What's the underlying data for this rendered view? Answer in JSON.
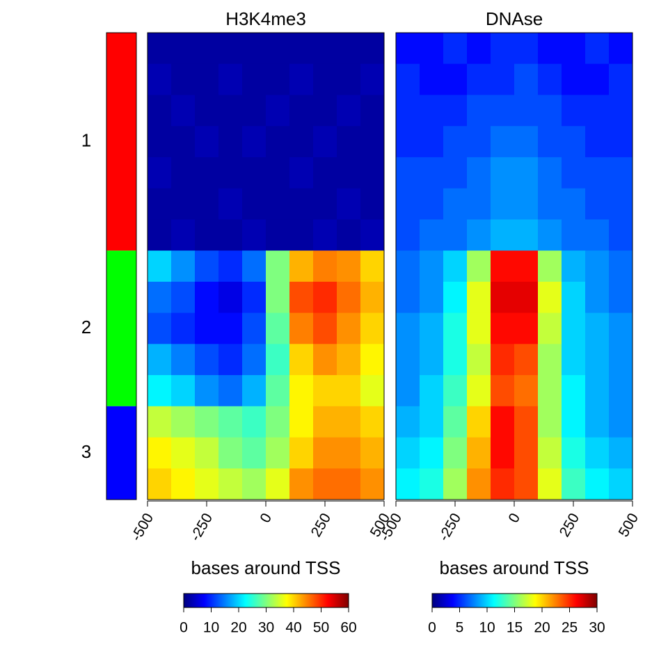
{
  "chart_data": {
    "type": "heatmap",
    "colormap": [
      "#00007f",
      "#0000ff",
      "#007fff",
      "#00ffff",
      "#7fff7f",
      "#ffff00",
      "#ff7f00",
      "#ff0000",
      "#7f0000"
    ],
    "clusters": [
      {
        "label": "1",
        "color": "#ff0000",
        "rows": 7
      },
      {
        "label": "2",
        "color": "#00ff00",
        "rows": 5
      },
      {
        "label": "3",
        "color": "#0000ff",
        "rows": 3
      }
    ],
    "panels": [
      {
        "title": "H3K4me3",
        "xlabel": "bases around TSS",
        "xbins": [
          -500,
          -400,
          -300,
          -200,
          -100,
          0,
          100,
          200,
          300,
          400,
          500
        ],
        "xlim": [
          -500,
          500
        ],
        "xticks": [
          -500,
          -250,
          0,
          250,
          500
        ],
        "values": [
          [
            2,
            2,
            2,
            2,
            2,
            2,
            2,
            2,
            2,
            2
          ],
          [
            3,
            2,
            2,
            3,
            2,
            2,
            3,
            2,
            2,
            3
          ],
          [
            2,
            3,
            2,
            2,
            2,
            3,
            2,
            2,
            3,
            2
          ],
          [
            2,
            2,
            3,
            2,
            3,
            2,
            2,
            3,
            2,
            2
          ],
          [
            3,
            2,
            2,
            2,
            2,
            2,
            3,
            2,
            2,
            2
          ],
          [
            2,
            2,
            2,
            3,
            2,
            2,
            2,
            2,
            3,
            2
          ],
          [
            2,
            3,
            2,
            2,
            3,
            2,
            2,
            3,
            2,
            3
          ],
          [
            20,
            16,
            12,
            10,
            14,
            30,
            42,
            45,
            44,
            40
          ],
          [
            14,
            12,
            8,
            6,
            10,
            30,
            48,
            50,
            46,
            42
          ],
          [
            12,
            10,
            8,
            8,
            12,
            28,
            45,
            48,
            44,
            40
          ],
          [
            18,
            15,
            12,
            10,
            14,
            26,
            40,
            44,
            42,
            38
          ],
          [
            22,
            20,
            16,
            14,
            18,
            28,
            38,
            40,
            40,
            36
          ],
          [
            34,
            32,
            30,
            28,
            26,
            30,
            38,
            42,
            42,
            40
          ],
          [
            38,
            36,
            34,
            30,
            28,
            32,
            40,
            44,
            44,
            42
          ],
          [
            40,
            38,
            36,
            34,
            32,
            36,
            44,
            46,
            46,
            44
          ]
        ],
        "colorbar": {
          "lim": [
            0,
            60
          ],
          "ticks": [
            0,
            10,
            20,
            30,
            40,
            50,
            60
          ]
        }
      },
      {
        "title": "DNAse",
        "xlabel": "bases around TSS",
        "xbins": [
          -500,
          -400,
          -300,
          -200,
          -100,
          0,
          100,
          200,
          300,
          400,
          500
        ],
        "xlim": [
          -500,
          500
        ],
        "xticks": [
          -500,
          -250,
          0,
          250,
          500
        ],
        "values": [
          [
            4,
            4,
            5,
            4,
            5,
            5,
            4,
            4,
            5,
            4
          ],
          [
            5,
            4,
            4,
            5,
            5,
            6,
            5,
            4,
            4,
            5
          ],
          [
            5,
            5,
            5,
            6,
            6,
            6,
            6,
            5,
            5,
            5
          ],
          [
            5,
            5,
            6,
            6,
            7,
            7,
            6,
            6,
            5,
            5
          ],
          [
            6,
            6,
            6,
            7,
            8,
            8,
            7,
            6,
            6,
            6
          ],
          [
            6,
            6,
            7,
            7,
            8,
            8,
            7,
            7,
            6,
            6
          ],
          [
            6,
            7,
            7,
            8,
            9,
            9,
            8,
            7,
            7,
            6
          ],
          [
            7,
            8,
            10,
            16,
            26,
            26,
            16,
            9,
            8,
            7
          ],
          [
            7,
            8,
            11,
            18,
            27,
            27,
            18,
            10,
            8,
            7
          ],
          [
            8,
            9,
            12,
            18,
            26,
            26,
            17,
            10,
            9,
            8
          ],
          [
            8,
            9,
            12,
            17,
            25,
            24,
            16,
            10,
            9,
            8
          ],
          [
            8,
            10,
            13,
            18,
            24,
            23,
            16,
            11,
            9,
            8
          ],
          [
            9,
            10,
            14,
            20,
            26,
            24,
            16,
            11,
            9,
            8
          ],
          [
            10,
            11,
            15,
            21,
            26,
            24,
            17,
            12,
            10,
            9
          ],
          [
            11,
            12,
            16,
            22,
            25,
            24,
            18,
            13,
            11,
            10
          ]
        ],
        "colorbar": {
          "lim": [
            0,
            30
          ],
          "ticks": [
            0,
            5,
            10,
            15,
            20,
            25,
            30
          ]
        }
      }
    ]
  }
}
